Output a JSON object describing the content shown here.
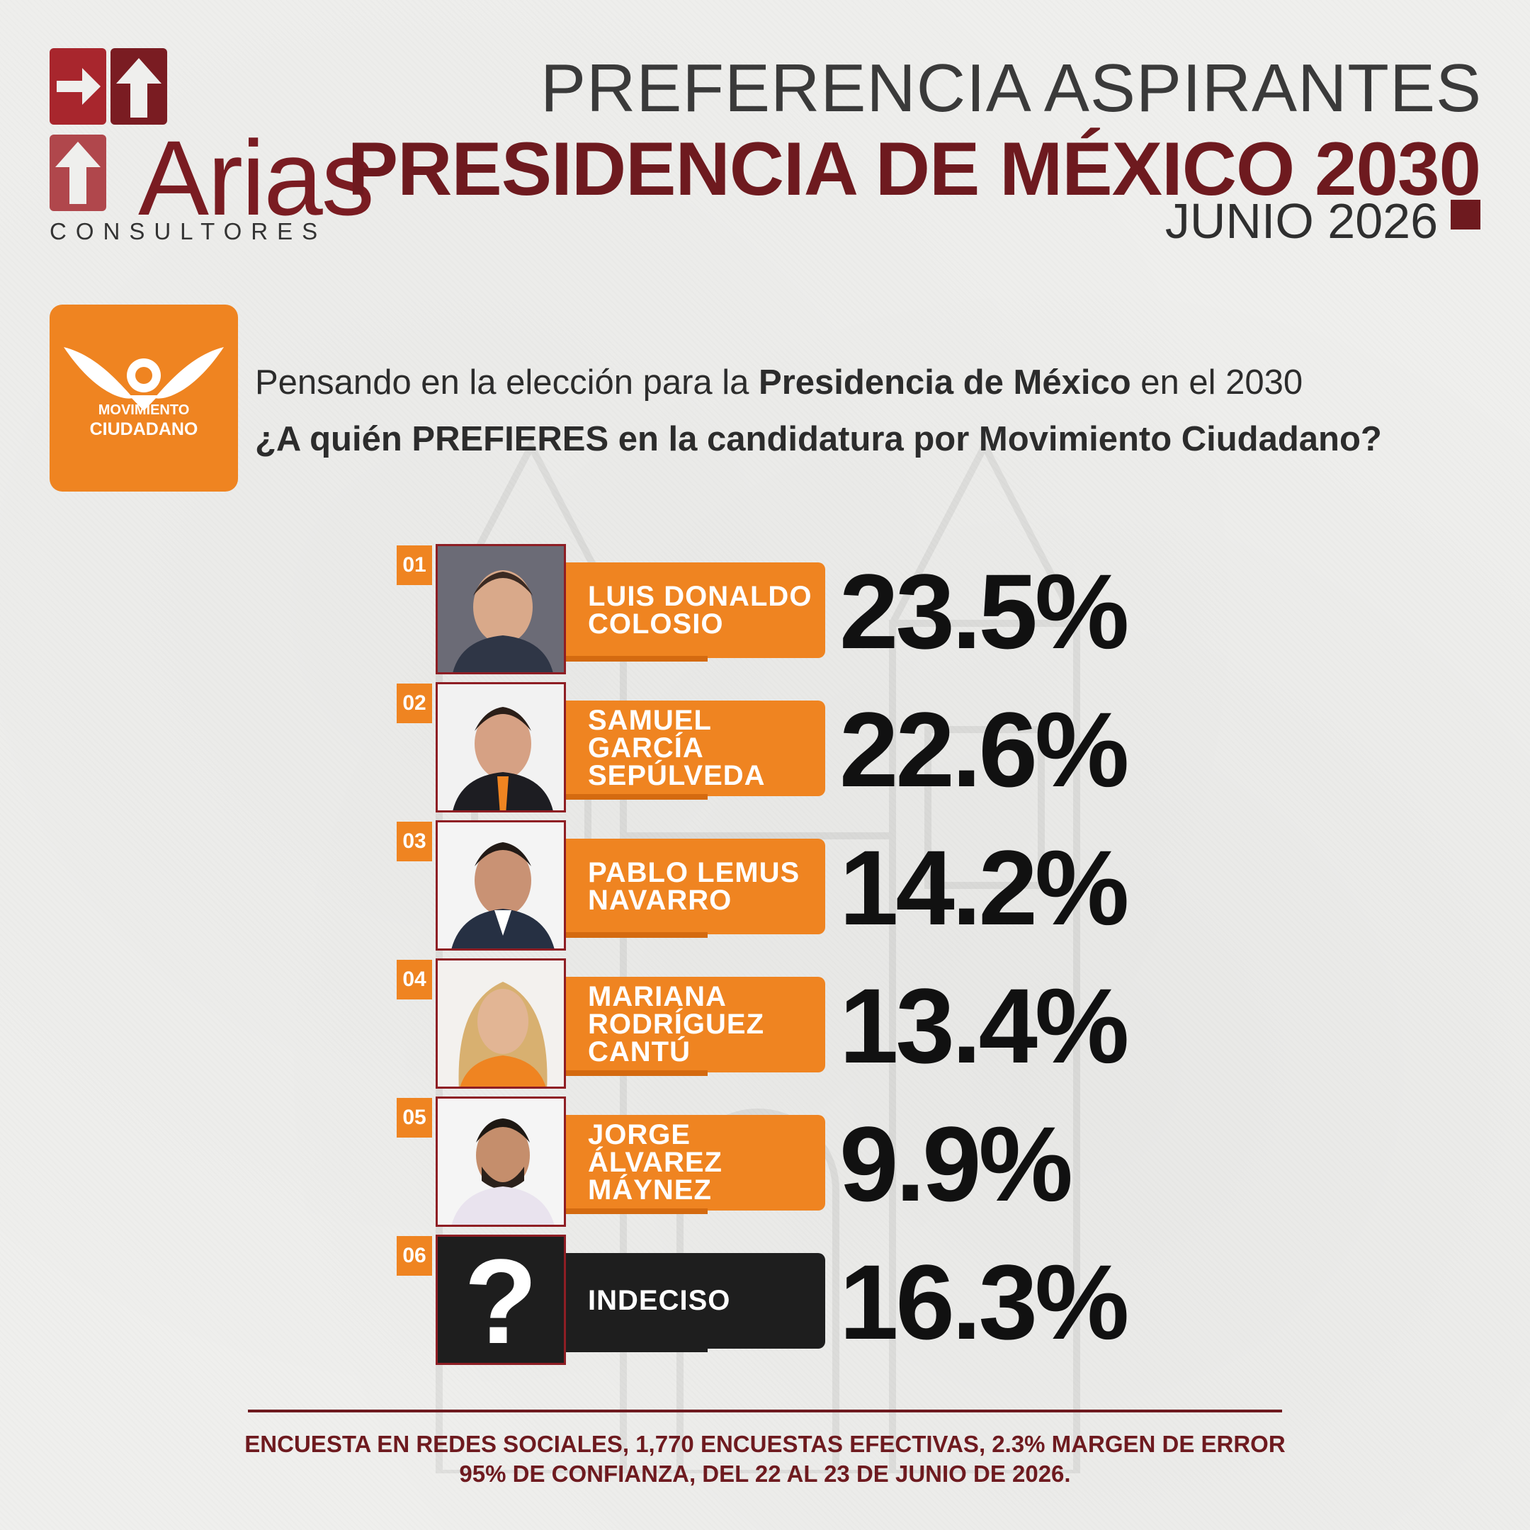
{
  "brand": {
    "name": "Arias",
    "subtitle": "CONSULTORES",
    "colors": {
      "maroon": "#6e1a1f",
      "red": "#a8262d",
      "orange": "#ef8421"
    }
  },
  "header": {
    "line1": "PREFERENCIA ASPIRANTES",
    "line2": "PRESIDENCIA DE MÉXICO 2030",
    "date": "JUNIO 2026"
  },
  "party": {
    "name_line1": "MOVIMIENTO",
    "name_line2": "CIUDADANO",
    "icon": "eagle-icon"
  },
  "question": {
    "l1_a": "Pensando en la elección para la ",
    "l1_b": "Presidencia de México",
    "l1_c": " en el 2030",
    "l2_a": "¿A quién ",
    "l2_b": "PREFIERES",
    "l2_c": " en la candidatura por Movimiento Ciudadano?"
  },
  "candidates": [
    {
      "num": "01",
      "name": "LUIS DONALDO\nCOLOSIO",
      "pct": "23.5%",
      "value": 23.5
    },
    {
      "num": "02",
      "name": "SAMUEL\nGARCÍA\nSEPÚLVEDA",
      "pct": "22.6%",
      "value": 22.6
    },
    {
      "num": "03",
      "name": "PABLO LEMUS\nNAVARRO",
      "pct": "14.2%",
      "value": 14.2
    },
    {
      "num": "04",
      "name": "MARIANA\nRODRÍGUEZ\nCANTÚ",
      "pct": "13.4%",
      "value": 13.4
    },
    {
      "num": "05",
      "name": "JORGE\nÁLVAREZ\nMÁYNEZ",
      "pct": "9.9%",
      "value": 9.9
    },
    {
      "num": "06",
      "name": "INDECISO",
      "pct": "16.3%",
      "value": 16.3,
      "icon": "question-mark-icon"
    }
  ],
  "footer": {
    "line1": "ENCUESTA EN REDES SOCIALES, 1,770 ENCUESTAS EFECTIVAS, 2.3% MARGEN DE ERROR",
    "line2": "95% DE CONFIANZA, DEL 22 AL 23 DE JUNIO DE 2026."
  }
}
